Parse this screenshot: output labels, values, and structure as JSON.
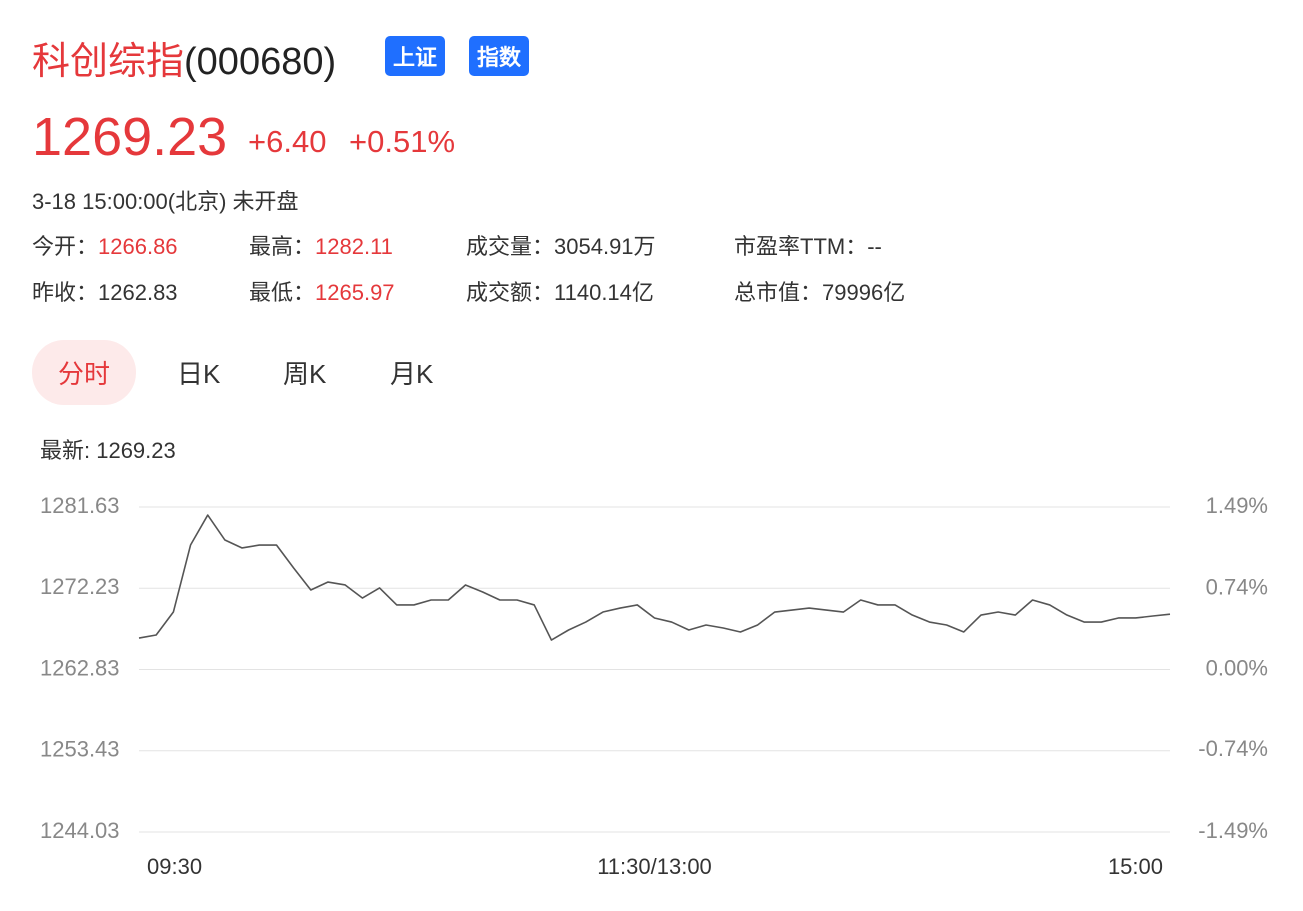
{
  "header": {
    "name": "科创综指",
    "code": "(000680)",
    "tags": [
      "上证",
      "指数"
    ]
  },
  "quote": {
    "price": "1269.23",
    "change": "+6.40",
    "change_pct": "+0.51%",
    "time": "3-18 15:00:00(北京) 未开盘"
  },
  "stats": [
    {
      "label": "今开：",
      "value": "1266.86"
    },
    {
      "label": "最高：",
      "value": "1282.11"
    },
    {
      "label": "成交量：",
      "value": "3054.91万"
    },
    {
      "label": "市盈率TTM：",
      "value": "--"
    },
    {
      "label": "昨收：",
      "value": "1262.83"
    },
    {
      "label": "最低：",
      "value": "1265.97"
    },
    {
      "label": "成交额：",
      "value": "1140.14亿"
    },
    {
      "label": "总市值：",
      "value": "79996亿"
    }
  ],
  "tabs": [
    "分时",
    "日K",
    "周K",
    "月K"
  ],
  "chart_data": {
    "type": "line",
    "subtitle": "最新: 1269.23",
    "color": "#555555",
    "grid": true,
    "x": [
      0,
      4,
      8,
      12,
      16,
      20,
      24,
      28,
      32,
      36,
      40,
      44,
      48,
      52,
      56,
      60,
      64,
      68,
      72,
      76,
      80,
      84,
      88,
      92,
      96,
      100,
      104,
      108,
      112,
      116,
      120,
      124,
      128,
      132,
      136,
      140,
      144,
      148,
      152,
      156,
      160,
      164,
      168,
      172,
      176,
      180,
      184,
      188,
      192,
      196,
      200,
      204,
      208,
      212,
      216,
      220,
      224,
      228,
      232,
      236,
      240
    ],
    "values": [
      1266.47,
      1266.82,
      1269.48,
      1277.23,
      1280.7,
      1277.81,
      1276.89,
      1277.23,
      1277.23,
      1274.57,
      1272.03,
      1272.95,
      1272.61,
      1271.1,
      1272.26,
      1270.3,
      1270.3,
      1270.87,
      1270.87,
      1272.61,
      1271.8,
      1270.87,
      1270.87,
      1270.3,
      1266.24,
      1267.4,
      1268.32,
      1269.48,
      1269.94,
      1270.3,
      1268.79,
      1268.32,
      1267.4,
      1267.98,
      1267.63,
      1267.17,
      1267.98,
      1269.48,
      1269.71,
      1269.94,
      1269.71,
      1269.48,
      1270.87,
      1270.3,
      1270.3,
      1269.13,
      1268.32,
      1267.98,
      1267.17,
      1269.13,
      1269.48,
      1269.13,
      1270.87,
      1270.3,
      1269.13,
      1268.32,
      1268.32,
      1268.79,
      1268.79,
      1269.02,
      1269.23
    ],
    "xlim": [
      0,
      240
    ],
    "xticks": [
      {
        "value": 0,
        "label": "09:30"
      },
      {
        "value": 120,
        "label": "11:30/13:00"
      },
      {
        "value": 240,
        "label": "15:00"
      }
    ],
    "ylim": [
      1244.03,
      1281.63
    ],
    "yticks": [
      1281.63,
      1272.23,
      1262.83,
      1253.43,
      1244.03
    ],
    "y2lim": [
      -1.49,
      1.49
    ],
    "y2ticks": [
      {
        "value": 1.49,
        "label": "1.49%"
      },
      {
        "value": 0.74,
        "label": "0.74%"
      },
      {
        "value": 0,
        "label": "0.00%"
      },
      {
        "value": -0.74,
        "label": "-0.74%"
      },
      {
        "value": -1.49,
        "label": "-1.49%"
      }
    ]
  }
}
